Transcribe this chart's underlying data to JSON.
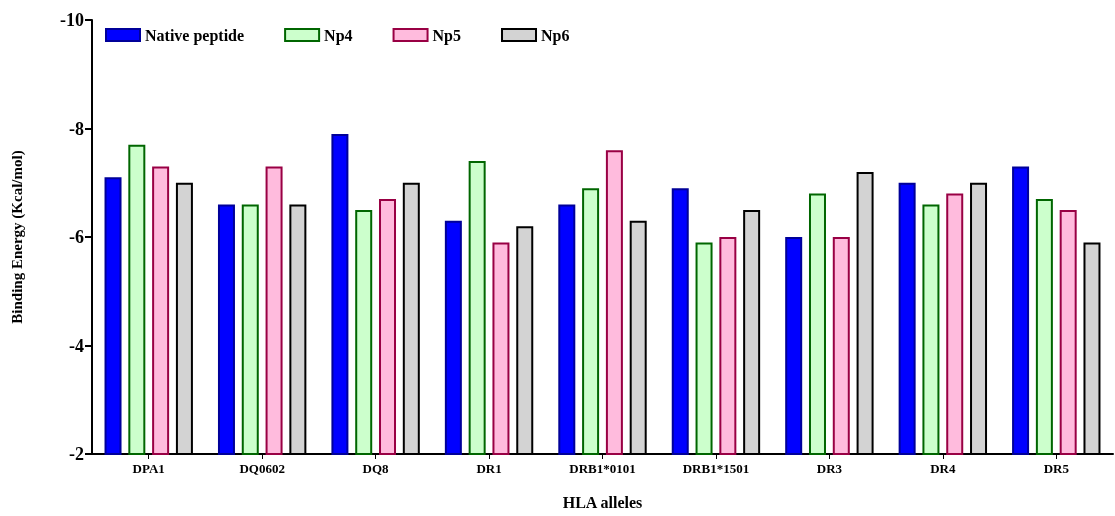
{
  "chart_data": {
    "type": "bar",
    "xlabel": "HLA alleles",
    "ylabel": "Binding Energy (Kcal/mol)",
    "categories": [
      "DPA1",
      "DQ0602",
      "DQ8",
      "DR1",
      "DRB1*0101",
      "DRB1*1501",
      "DR3",
      "DR4",
      "DR5"
    ],
    "series": [
      {
        "name": "Native peptide",
        "color": "#0000ff",
        "values": [
          -7.1,
          -6.6,
          -7.9,
          -6.3,
          -6.6,
          -6.9,
          -6.0,
          -7.0,
          -7.3
        ]
      },
      {
        "name": "Np4",
        "color": "#ccffcc",
        "values": [
          -7.7,
          -6.6,
          -6.5,
          -7.4,
          -6.9,
          -5.9,
          -6.8,
          -6.6,
          -6.7
        ]
      },
      {
        "name": "Np5",
        "color": "#ffbbdd",
        "values": [
          -7.3,
          -7.3,
          -6.7,
          -5.9,
          -7.6,
          -6.0,
          -6.0,
          -6.8,
          -6.5
        ]
      },
      {
        "name": "Np6",
        "color": "#d3d3d3",
        "values": [
          -7.0,
          -6.6,
          -7.0,
          -6.2,
          -6.3,
          -6.5,
          -7.2,
          -7.0,
          -5.9
        ]
      }
    ],
    "ylim": [
      -2,
      -10
    ],
    "yticks": [
      -2,
      -4,
      -6,
      -8,
      -10
    ],
    "grid": false,
    "legend": "top left"
  }
}
